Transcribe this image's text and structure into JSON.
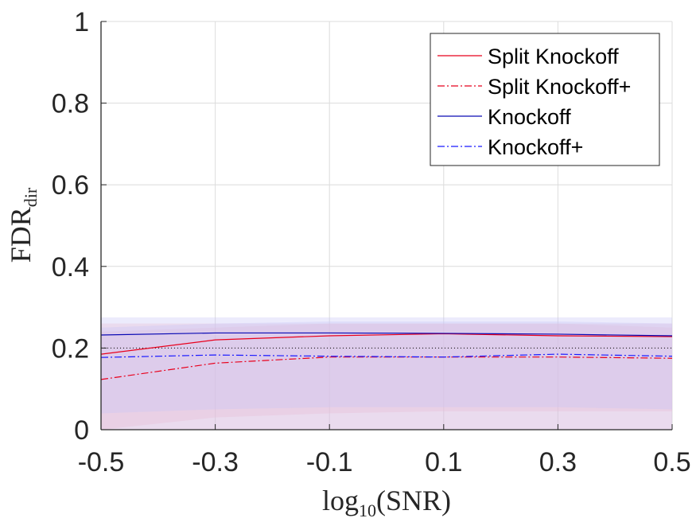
{
  "chart_data": {
    "type": "line",
    "title": "",
    "xlabel": {
      "base": "log",
      "sub": "10",
      "rest": "(SNR)"
    },
    "ylabel": {
      "base": "FDR",
      "sub": "dir"
    },
    "x": [
      -0.5,
      -0.3,
      -0.1,
      0.1,
      0.3,
      0.5
    ],
    "xlim": [
      -0.5,
      0.5
    ],
    "ylim": [
      0,
      1
    ],
    "x_ticks": [
      -0.5,
      -0.3,
      -0.1,
      0.1,
      0.3,
      0.5
    ],
    "x_tick_labels": [
      "-0.5",
      "-0.3",
      "-0.1",
      "0.1",
      "0.3",
      "0.5"
    ],
    "y_ticks": [
      0,
      0.2,
      0.4,
      0.6,
      0.8,
      1
    ],
    "y_tick_labels": [
      "0",
      "0.2",
      "0.4",
      "0.6",
      "0.8",
      "1"
    ],
    "grid": true,
    "legend_position": "top-right",
    "reference_line": {
      "y": 0.2,
      "style": "dotted",
      "color": "#000000"
    },
    "series": [
      {
        "name": "Split Knockoff",
        "color": "#e8001c",
        "dash": "solid",
        "values": [
          0.185,
          0.22,
          0.23,
          0.235,
          0.23,
          0.228
        ],
        "band": {
          "lower": [
            0.0,
            0.03,
            0.04,
            0.045,
            0.045,
            0.045
          ],
          "upper": [
            0.26,
            0.26,
            0.26,
            0.26,
            0.26,
            0.26
          ]
        },
        "band_color": "#f5b8c2"
      },
      {
        "name": "Split Knockoff+",
        "color": "#e8001c",
        "dash": "dashdot",
        "values": [
          0.123,
          0.163,
          0.178,
          0.178,
          0.178,
          0.175
        ],
        "band": {
          "lower": [
            0.0,
            0.0,
            0.0,
            0.0,
            0.0,
            0.0
          ],
          "upper": [
            0.24,
            0.25,
            0.26,
            0.26,
            0.26,
            0.25
          ]
        },
        "band_color": "#f5b8c2"
      },
      {
        "name": "Knockoff",
        "color": "#0a0ab4",
        "dash": "solid",
        "values": [
          0.232,
          0.237,
          0.237,
          0.236,
          0.234,
          0.23
        ],
        "band": {
          "lower": [
            0.04,
            0.05,
            0.055,
            0.055,
            0.055,
            0.05
          ],
          "upper": [
            0.275,
            0.275,
            0.275,
            0.275,
            0.275,
            0.275
          ]
        },
        "band_color": "#c9c6f7"
      },
      {
        "name": "Knockoff+",
        "color": "#1a1aff",
        "dash": "dashdot",
        "values": [
          0.177,
          0.183,
          0.18,
          0.178,
          0.185,
          0.18
        ],
        "band": {
          "lower": [
            0.0,
            0.0,
            0.0,
            0.0,
            0.0,
            0.0
          ],
          "upper": [
            0.25,
            0.26,
            0.265,
            0.265,
            0.265,
            0.26
          ]
        },
        "band_color": "#c9c6f7"
      }
    ]
  }
}
